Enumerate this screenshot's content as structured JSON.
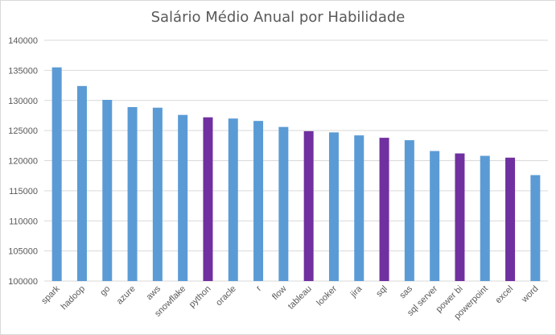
{
  "chart_data": {
    "type": "bar",
    "title": "Salário Médio Anual por Habilidade",
    "xlabel": "",
    "ylabel": "",
    "ylim": [
      100000,
      140000
    ],
    "ytick_step": 5000,
    "yticks": [
      "100000",
      "105000",
      "110000",
      "115000",
      "120000",
      "125000",
      "130000",
      "135000",
      "140000"
    ],
    "grid": true,
    "legend": "none",
    "categories": [
      "spark",
      "hadoop",
      "go",
      "azure",
      "aws",
      "snowflake",
      "python",
      "oracle",
      "r",
      "flow",
      "tableau",
      "looker",
      "jira",
      "sql",
      "sas",
      "sql server",
      "power bi",
      "powerpoint",
      "excel",
      "word"
    ],
    "values": [
      135500,
      132400,
      130100,
      128900,
      128800,
      127600,
      127200,
      127000,
      126600,
      125600,
      124900,
      124700,
      124200,
      123800,
      123400,
      121600,
      121200,
      120800,
      120500,
      117600
    ],
    "highlighted": [
      "python",
      "tableau",
      "sql",
      "power bi",
      "excel"
    ],
    "colors": {
      "default": "#5b9bd5",
      "highlight": "#7030a0",
      "grid": "#d9d9d9",
      "text": "#595959"
    }
  }
}
